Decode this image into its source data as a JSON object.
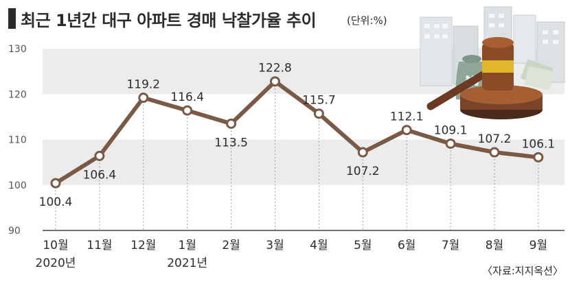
{
  "header": {
    "title": "최근 1년간 대구 아파트 경매 낙찰가율 추이",
    "unit": "(단위:%)"
  },
  "footer": {
    "source": "〈자료:지지옥션〉"
  },
  "colors": {
    "line": "#7b5a45",
    "band": "#ececec",
    "axis": "#444444",
    "text": "#2b2b2b"
  },
  "illustration": {
    "icon": "auction-gavel-money-buildings-icon"
  },
  "chart_data": {
    "type": "line",
    "categories": [
      "10월",
      "11월",
      "12월",
      "1월",
      "2월",
      "3월",
      "4월",
      "5월",
      "6월",
      "7월",
      "8월",
      "9월"
    ],
    "year_labels": [
      "2020년",
      "",
      "",
      "2021년",
      "",
      "",
      "",
      "",
      "",
      "",
      "",
      ""
    ],
    "values": [
      100.4,
      106.4,
      119.2,
      116.4,
      113.5,
      122.8,
      115.7,
      107.2,
      112.1,
      109.1,
      107.2,
      106.1
    ],
    "value_labels": [
      "100.4",
      "106.4",
      "119.2",
      "116.4",
      "113.5",
      "122.8",
      "115.7",
      "107.2",
      "112.1",
      "109.1",
      "107.2",
      "106.1"
    ],
    "label_positions": [
      "below",
      "below",
      "above",
      "above",
      "below",
      "above",
      "above",
      "below",
      "above",
      "above",
      "above",
      "above"
    ],
    "yticks": [
      90,
      100,
      110,
      120,
      130
    ],
    "ylim": [
      90,
      130
    ],
    "grid": "alternating-bands",
    "legend": "none"
  }
}
